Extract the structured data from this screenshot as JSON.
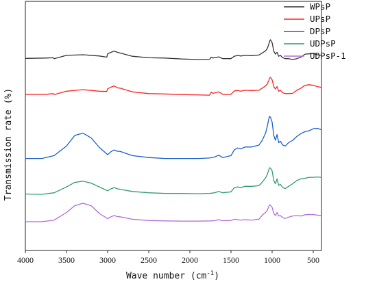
{
  "chart_data": {
    "type": "line",
    "title": "",
    "xlabel": "Wave number (cm",
    "xlabel_sup": "-1",
    "xlabel_close": ")",
    "ylabel": "Transmission rate (%)",
    "xlim": [
      4000,
      400
    ],
    "x_reversed": true,
    "x_ticks": [
      4000,
      3500,
      3000,
      2500,
      2000,
      1500,
      1000,
      500
    ],
    "y_tick_labels": false,
    "grid": false,
    "legend_position": "top-right",
    "series": [
      {
        "name": "WPsP",
        "color": "#333333",
        "points": [
          [
            4000,
            0.62
          ],
          [
            3750,
            0.61
          ],
          [
            3660,
            0.6
          ],
          [
            3650,
            0.63
          ],
          [
            3500,
            0.52
          ],
          [
            3300,
            0.5
          ],
          [
            3100,
            0.54
          ],
          [
            3010,
            0.58
          ],
          [
            3000,
            0.47
          ],
          [
            2960,
            0.42
          ],
          [
            2920,
            0.38
          ],
          [
            2880,
            0.42
          ],
          [
            2850,
            0.44
          ],
          [
            2700,
            0.55
          ],
          [
            2500,
            0.6
          ],
          [
            2300,
            0.61
          ],
          [
            2100,
            0.64
          ],
          [
            1900,
            0.66
          ],
          [
            1760,
            0.65
          ],
          [
            1740,
            0.58
          ],
          [
            1720,
            0.61
          ],
          [
            1650,
            0.57
          ],
          [
            1600,
            0.63
          ],
          [
            1500,
            0.63
          ],
          [
            1460,
            0.55
          ],
          [
            1420,
            0.52
          ],
          [
            1380,
            0.54
          ],
          [
            1330,
            0.52
          ],
          [
            1250,
            0.53
          ],
          [
            1160,
            0.51
          ],
          [
            1120,
            0.44
          ],
          [
            1080,
            0.37
          ],
          [
            1060,
            0.3
          ],
          [
            1040,
            0.15
          ],
          [
            1030,
            0.05
          ],
          [
            1020,
            0.0
          ],
          [
            1000,
            0.1
          ],
          [
            980,
            0.38
          ],
          [
            960,
            0.48
          ],
          [
            940,
            0.42
          ],
          [
            920,
            0.55
          ],
          [
            900,
            0.52
          ],
          [
            870,
            0.6
          ],
          [
            840,
            0.63
          ],
          [
            800,
            0.63
          ],
          [
            750,
            0.66
          ],
          [
            700,
            0.63
          ],
          [
            650,
            0.58
          ],
          [
            600,
            0.48
          ],
          [
            550,
            0.47
          ],
          [
            500,
            0.46
          ],
          [
            450,
            0.5
          ],
          [
            400,
            0.52
          ]
        ]
      },
      {
        "name": "UPsP",
        "color": "#ff2020",
        "points": [
          [
            4000,
            0.55
          ],
          [
            3750,
            0.55
          ],
          [
            3660,
            0.53
          ],
          [
            3650,
            0.56
          ],
          [
            3500,
            0.45
          ],
          [
            3300,
            0.4
          ],
          [
            3100,
            0.45
          ],
          [
            3010,
            0.46
          ],
          [
            3000,
            0.37
          ],
          [
            2960,
            0.32
          ],
          [
            2920,
            0.28
          ],
          [
            2880,
            0.34
          ],
          [
            2850,
            0.35
          ],
          [
            2700,
            0.47
          ],
          [
            2500,
            0.53
          ],
          [
            2300,
            0.54
          ],
          [
            2100,
            0.56
          ],
          [
            1900,
            0.57
          ],
          [
            1760,
            0.58
          ],
          [
            1740,
            0.48
          ],
          [
            1720,
            0.52
          ],
          [
            1650,
            0.47
          ],
          [
            1600,
            0.55
          ],
          [
            1500,
            0.55
          ],
          [
            1460,
            0.44
          ],
          [
            1420,
            0.43
          ],
          [
            1380,
            0.45
          ],
          [
            1330,
            0.42
          ],
          [
            1250,
            0.43
          ],
          [
            1160,
            0.42
          ],
          [
            1120,
            0.35
          ],
          [
            1080,
            0.28
          ],
          [
            1060,
            0.22
          ],
          [
            1040,
            0.1
          ],
          [
            1030,
            0.02
          ],
          [
            1020,
            0.0
          ],
          [
            1000,
            0.08
          ],
          [
            980,
            0.3
          ],
          [
            960,
            0.38
          ],
          [
            940,
            0.3
          ],
          [
            920,
            0.45
          ],
          [
            900,
            0.42
          ],
          [
            870,
            0.5
          ],
          [
            840,
            0.53
          ],
          [
            800,
            0.53
          ],
          [
            750,
            0.52
          ],
          [
            700,
            0.42
          ],
          [
            650,
            0.35
          ],
          [
            600,
            0.26
          ],
          [
            550,
            0.24
          ],
          [
            500,
            0.26
          ],
          [
            450,
            0.3
          ],
          [
            400,
            0.33
          ]
        ]
      },
      {
        "name": "DPsP",
        "color": "#1a5fc8",
        "points": [
          [
            4000,
            0.88
          ],
          [
            3800,
            0.88
          ],
          [
            3650,
            0.82
          ],
          [
            3500,
            0.62
          ],
          [
            3400,
            0.4
          ],
          [
            3300,
            0.35
          ],
          [
            3200,
            0.45
          ],
          [
            3100,
            0.65
          ],
          [
            3000,
            0.8
          ],
          [
            2960,
            0.74
          ],
          [
            2920,
            0.7
          ],
          [
            2880,
            0.73
          ],
          [
            2850,
            0.73
          ],
          [
            2700,
            0.82
          ],
          [
            2500,
            0.86
          ],
          [
            2300,
            0.88
          ],
          [
            2100,
            0.88
          ],
          [
            1900,
            0.88
          ],
          [
            1760,
            0.87
          ],
          [
            1700,
            0.85
          ],
          [
            1650,
            0.81
          ],
          [
            1600,
            0.86
          ],
          [
            1500,
            0.82
          ],
          [
            1460,
            0.7
          ],
          [
            1420,
            0.66
          ],
          [
            1380,
            0.68
          ],
          [
            1330,
            0.64
          ],
          [
            1250,
            0.64
          ],
          [
            1160,
            0.6
          ],
          [
            1120,
            0.5
          ],
          [
            1080,
            0.35
          ],
          [
            1060,
            0.22
          ],
          [
            1040,
            0.05
          ],
          [
            1030,
            0.0
          ],
          [
            1020,
            0.02
          ],
          [
            1000,
            0.12
          ],
          [
            980,
            0.4
          ],
          [
            960,
            0.5
          ],
          [
            940,
            0.38
          ],
          [
            920,
            0.55
          ],
          [
            900,
            0.52
          ],
          [
            870,
            0.6
          ],
          [
            840,
            0.62
          ],
          [
            800,
            0.55
          ],
          [
            750,
            0.5
          ],
          [
            700,
            0.42
          ],
          [
            650,
            0.36
          ],
          [
            600,
            0.32
          ],
          [
            550,
            0.3
          ],
          [
            500,
            0.26
          ],
          [
            450,
            0.25
          ],
          [
            400,
            0.28
          ]
        ]
      },
      {
        "name": "UDPsP",
        "color": "#2e9b6a",
        "points": [
          [
            4000,
            0.82
          ],
          [
            3800,
            0.83
          ],
          [
            3650,
            0.78
          ],
          [
            3500,
            0.6
          ],
          [
            3400,
            0.46
          ],
          [
            3300,
            0.42
          ],
          [
            3200,
            0.48
          ],
          [
            3100,
            0.6
          ],
          [
            3000,
            0.72
          ],
          [
            2960,
            0.66
          ],
          [
            2920,
            0.62
          ],
          [
            2880,
            0.66
          ],
          [
            2850,
            0.67
          ],
          [
            2700,
            0.74
          ],
          [
            2500,
            0.78
          ],
          [
            2300,
            0.8
          ],
          [
            2100,
            0.8
          ],
          [
            1900,
            0.81
          ],
          [
            1760,
            0.8
          ],
          [
            1700,
            0.78
          ],
          [
            1650,
            0.74
          ],
          [
            1600,
            0.78
          ],
          [
            1500,
            0.75
          ],
          [
            1460,
            0.62
          ],
          [
            1420,
            0.6
          ],
          [
            1380,
            0.62
          ],
          [
            1330,
            0.58
          ],
          [
            1250,
            0.58
          ],
          [
            1160,
            0.56
          ],
          [
            1120,
            0.45
          ],
          [
            1080,
            0.32
          ],
          [
            1060,
            0.22
          ],
          [
            1040,
            0.06
          ],
          [
            1030,
            0.0
          ],
          [
            1020,
            0.02
          ],
          [
            1000,
            0.1
          ],
          [
            980,
            0.4
          ],
          [
            960,
            0.5
          ],
          [
            940,
            0.35
          ],
          [
            920,
            0.55
          ],
          [
            900,
            0.52
          ],
          [
            870,
            0.62
          ],
          [
            840,
            0.65
          ],
          [
            800,
            0.58
          ],
          [
            750,
            0.5
          ],
          [
            700,
            0.4
          ],
          [
            650,
            0.35
          ],
          [
            600,
            0.33
          ],
          [
            550,
            0.3
          ],
          [
            500,
            0.3
          ],
          [
            450,
            0.29
          ],
          [
            400,
            0.3
          ]
        ]
      },
      {
        "name": "UDPsP-1",
        "color": "#b06ad6",
        "points": [
          [
            4000,
            0.9
          ],
          [
            3800,
            0.9
          ],
          [
            3650,
            0.82
          ],
          [
            3500,
            0.45
          ],
          [
            3400,
            0.12
          ],
          [
            3300,
            0.0
          ],
          [
            3200,
            0.12
          ],
          [
            3100,
            0.5
          ],
          [
            3000,
            0.75
          ],
          [
            2960,
            0.66
          ],
          [
            2920,
            0.6
          ],
          [
            2880,
            0.65
          ],
          [
            2850,
            0.66
          ],
          [
            2700,
            0.78
          ],
          [
            2500,
            0.84
          ],
          [
            2300,
            0.86
          ],
          [
            2100,
            0.87
          ],
          [
            1900,
            0.87
          ],
          [
            1760,
            0.86
          ],
          [
            1700,
            0.85
          ],
          [
            1650,
            0.8
          ],
          [
            1600,
            0.85
          ],
          [
            1500,
            0.84
          ],
          [
            1460,
            0.78
          ],
          [
            1420,
            0.8
          ],
          [
            1380,
            0.82
          ],
          [
            1330,
            0.8
          ],
          [
            1250,
            0.82
          ],
          [
            1160,
            0.78
          ],
          [
            1120,
            0.58
          ],
          [
            1080,
            0.45
          ],
          [
            1060,
            0.35
          ],
          [
            1040,
            0.15
          ],
          [
            1030,
            0.08
          ],
          [
            1020,
            0.1
          ],
          [
            1000,
            0.2
          ],
          [
            980,
            0.5
          ],
          [
            960,
            0.6
          ],
          [
            940,
            0.45
          ],
          [
            920,
            0.62
          ],
          [
            900,
            0.6
          ],
          [
            870,
            0.7
          ],
          [
            840,
            0.74
          ],
          [
            800,
            0.68
          ],
          [
            750,
            0.62
          ],
          [
            700,
            0.6
          ],
          [
            650,
            0.62
          ],
          [
            600,
            0.56
          ],
          [
            550,
            0.55
          ],
          [
            500,
            0.55
          ],
          [
            450,
            0.58
          ],
          [
            400,
            0.6
          ]
        ]
      }
    ]
  }
}
